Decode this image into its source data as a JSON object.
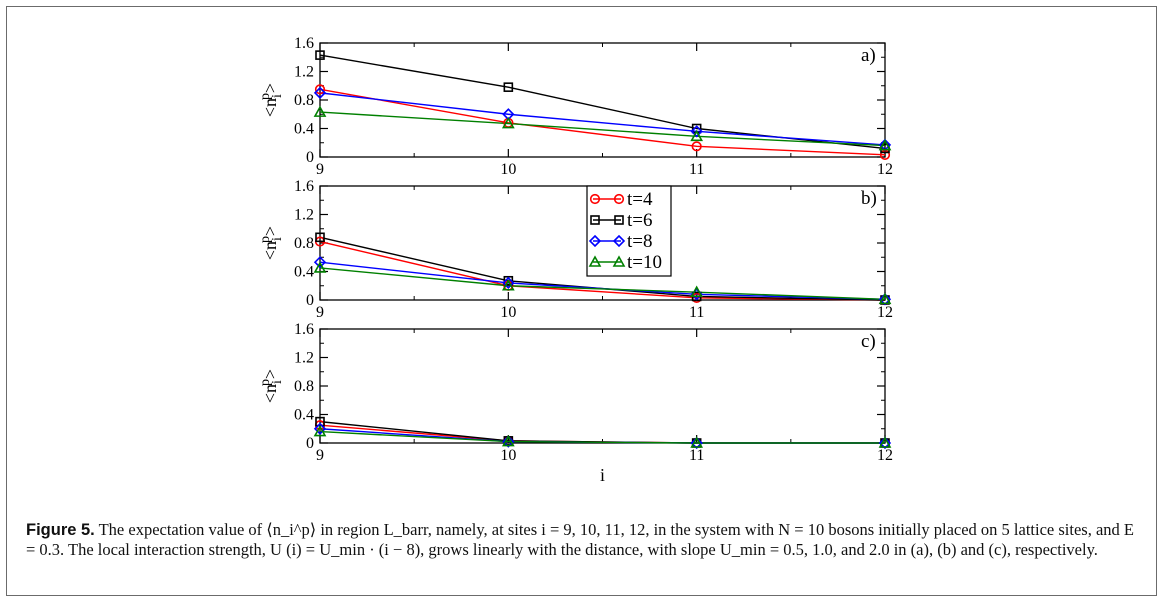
{
  "chart_data": {
    "type": "line",
    "x": [
      9,
      10,
      11,
      12
    ],
    "xlabel": "i",
    "ylabel_base": "<n",
    "ylabel_sub": "i",
    "ylabel_sup": "p",
    "ylabel_end": ">",
    "ylim": [
      0,
      1.6
    ],
    "yticks": [
      "0",
      "0.4",
      "0.8",
      "1.2",
      "1.6"
    ],
    "xticks": [
      "9",
      "10",
      "11",
      "12"
    ],
    "legend_position": "center",
    "series": [
      {
        "name": "t=4",
        "color": "#ff0000",
        "marker": "circle"
      },
      {
        "name": "t=6",
        "color": "#000000",
        "marker": "square"
      },
      {
        "name": "t=8",
        "color": "#0000ff",
        "marker": "diamond"
      },
      {
        "name": "t=10",
        "color": "#008000",
        "marker": "triangle"
      }
    ],
    "panels": [
      {
        "label": "a)",
        "values": [
          [
            0.95,
            0.48,
            0.15,
            0.03
          ],
          [
            1.43,
            0.98,
            0.4,
            0.12
          ],
          [
            0.9,
            0.6,
            0.36,
            0.17
          ],
          [
            0.63,
            0.47,
            0.29,
            0.16
          ]
        ]
      },
      {
        "label": "b)",
        "values": [
          [
            0.82,
            0.2,
            0.03,
            0.0
          ],
          [
            0.88,
            0.27,
            0.05,
            0.0
          ],
          [
            0.53,
            0.24,
            0.08,
            0.01
          ],
          [
            0.45,
            0.2,
            0.11,
            0.01
          ]
        ]
      },
      {
        "label": "c)",
        "values": [
          [
            0.25,
            0.03,
            0.0,
            0.0
          ],
          [
            0.3,
            0.03,
            0.0,
            0.0
          ],
          [
            0.2,
            0.02,
            0.0,
            0.0
          ],
          [
            0.16,
            0.02,
            0.0,
            0.0
          ]
        ]
      }
    ]
  },
  "caption": {
    "label": "Figure 5.",
    "text": " The expectation value of ⟨n_i^p⟩ in region L_barr, namely, at sites i = 9, 10, 11, 12, in the system with N = 10 bosons initially placed on 5 lattice sites, and E = 0.3. The local interaction strength, U (i) = U_min · (i − 8), grows linearly with the distance, with slope U_min = 0.5, 1.0, and 2.0 in (a), (b) and (c), respectively."
  }
}
